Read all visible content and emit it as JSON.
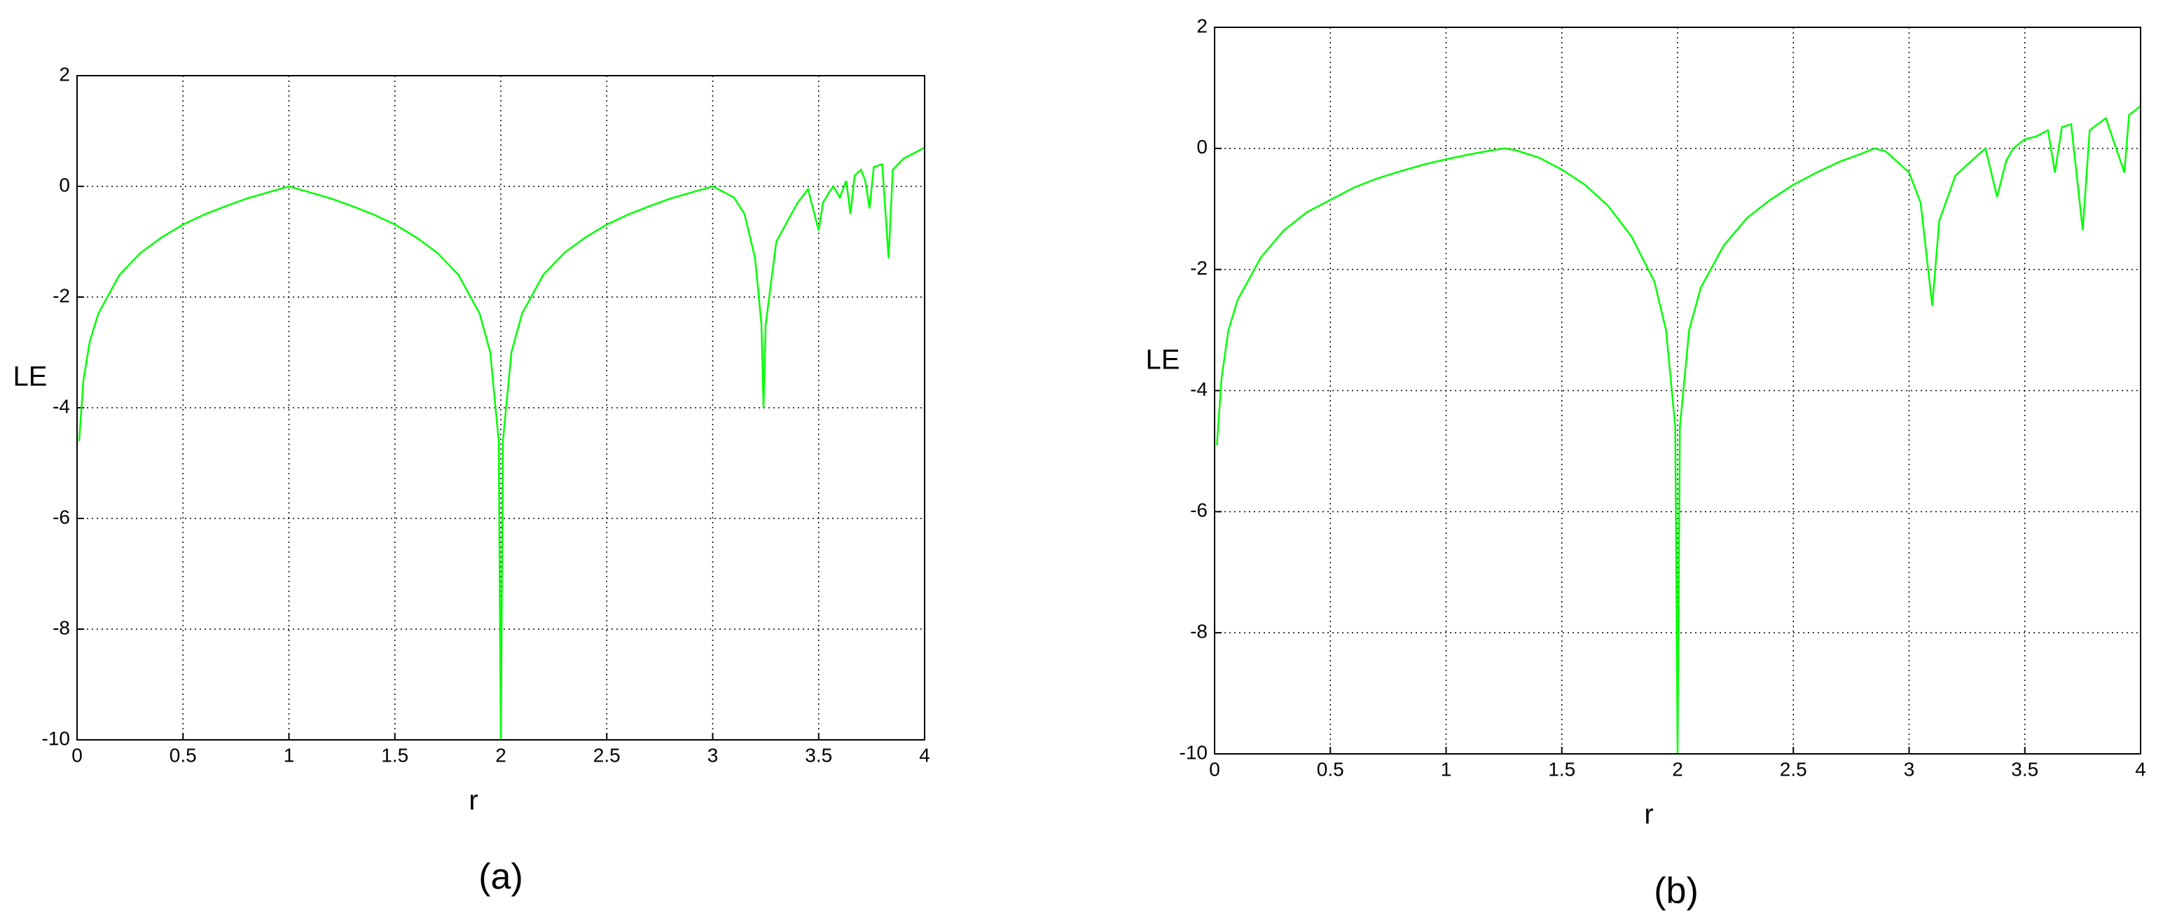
{
  "chart_data": [
    {
      "type": "line",
      "label": "(a)",
      "xlabel": "r",
      "ylabel": "LE",
      "color": "#00ff00",
      "grid": true,
      "xlim": [
        0,
        4
      ],
      "ylim": [
        -10,
        2
      ],
      "xticks": [
        0,
        0.5,
        1,
        1.5,
        2,
        2.5,
        3,
        3.5,
        4
      ],
      "yticks": [
        -10,
        -8,
        -6,
        -4,
        -2,
        0,
        2
      ],
      "x": [
        0.01,
        0.03,
        0.06,
        0.1,
        0.2,
        0.3,
        0.4,
        0.5,
        0.6,
        0.7,
        0.8,
        0.9,
        1.0,
        1.1,
        1.2,
        1.3,
        1.4,
        1.5,
        1.6,
        1.7,
        1.8,
        1.9,
        1.95,
        1.99,
        2.0,
        2.01,
        2.05,
        2.1,
        2.2,
        2.3,
        2.4,
        2.5,
        2.6,
        2.7,
        2.8,
        2.9,
        3.0,
        3.1,
        3.15,
        3.2,
        3.23,
        3.24,
        3.25,
        3.3,
        3.4,
        3.45,
        3.5,
        3.52,
        3.55,
        3.57,
        3.6,
        3.63,
        3.65,
        3.67,
        3.7,
        3.72,
        3.74,
        3.76,
        3.8,
        3.83,
        3.85,
        3.9,
        3.95,
        4.0
      ],
      "values": [
        -4.6,
        -3.5,
        -2.8,
        -2.3,
        -1.6,
        -1.2,
        -0.92,
        -0.69,
        -0.51,
        -0.36,
        -0.22,
        -0.11,
        0,
        -0.11,
        -0.22,
        -0.36,
        -0.51,
        -0.69,
        -0.92,
        -1.2,
        -1.6,
        -2.3,
        -3.0,
        -4.6,
        -10,
        -4.6,
        -3.0,
        -2.3,
        -1.6,
        -1.2,
        -0.92,
        -0.69,
        -0.51,
        -0.36,
        -0.22,
        -0.11,
        0,
        -0.2,
        -0.5,
        -1.3,
        -2.5,
        -4,
        -2.5,
        -1.0,
        -0.3,
        -0.05,
        -0.8,
        -0.3,
        -0.1,
        0,
        -0.2,
        0.1,
        -0.5,
        0.2,
        0.3,
        0.1,
        -0.4,
        0.35,
        0.4,
        -1.3,
        0.3,
        0.5,
        0.6,
        0.7
      ]
    },
    {
      "type": "line",
      "label": "(b)",
      "xlabel": "r",
      "ylabel": "LE",
      "color": "#00ff00",
      "grid": true,
      "xlim": [
        0,
        4
      ],
      "ylim": [
        -10,
        2
      ],
      "xticks": [
        0,
        0.5,
        1,
        1.5,
        2,
        2.5,
        3,
        3.5,
        4
      ],
      "yticks": [
        -10,
        -8,
        -6,
        -4,
        -2,
        0,
        2
      ],
      "x": [
        0.01,
        0.03,
        0.06,
        0.1,
        0.2,
        0.3,
        0.4,
        0.5,
        0.6,
        0.7,
        0.8,
        0.9,
        1.0,
        1.1,
        1.2,
        1.25,
        1.3,
        1.4,
        1.5,
        1.6,
        1.7,
        1.8,
        1.9,
        1.95,
        1.99,
        2.0,
        2.01,
        2.05,
        2.1,
        2.2,
        2.3,
        2.4,
        2.5,
        2.6,
        2.7,
        2.8,
        2.85,
        2.9,
        3.0,
        3.05,
        3.1,
        3.13,
        3.2,
        3.3,
        3.33,
        3.38,
        3.42,
        3.45,
        3.5,
        3.55,
        3.6,
        3.63,
        3.66,
        3.7,
        3.75,
        3.78,
        3.85,
        3.93,
        3.95,
        4.0
      ],
      "values": [
        -4.9,
        -3.8,
        -3.0,
        -2.5,
        -1.8,
        -1.35,
        -1.05,
        -0.85,
        -0.65,
        -0.5,
        -0.38,
        -0.27,
        -0.18,
        -0.1,
        -0.03,
        0,
        -0.03,
        -0.15,
        -0.35,
        -0.6,
        -0.95,
        -1.45,
        -2.2,
        -3.0,
        -4.6,
        -10,
        -4.6,
        -3.0,
        -2.3,
        -1.6,
        -1.15,
        -0.85,
        -0.6,
        -0.4,
        -0.22,
        -0.08,
        0,
        -0.05,
        -0.4,
        -0.9,
        -2.6,
        -1.2,
        -0.45,
        -0.1,
        0,
        -0.8,
        -0.2,
        0,
        0.15,
        0.2,
        0.3,
        -0.4,
        0.35,
        0.4,
        -1.35,
        0.3,
        0.5,
        -0.4,
        0.55,
        0.7
      ]
    }
  ]
}
